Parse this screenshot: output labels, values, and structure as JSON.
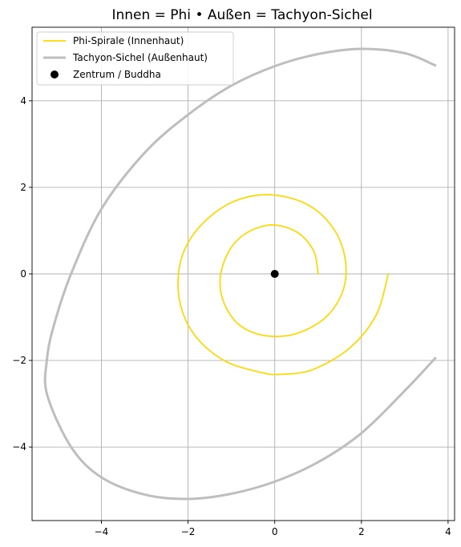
{
  "chart_data": {
    "type": "line",
    "title": "Innen = Phi • Außen = Tachyon-Sichel",
    "xlabel": "",
    "ylabel": "",
    "xlim": [
      -5.6,
      4.15
    ],
    "ylim": [
      -5.7,
      5.7
    ],
    "xticks": [
      -4,
      -2,
      0,
      2,
      4
    ],
    "yticks": [
      -4,
      -2,
      0,
      2,
      4
    ],
    "grid": true,
    "legend_position": "top-left",
    "series": [
      {
        "name": "Phi-Spirale (Innenhaut)",
        "kind": "line",
        "color": "#FFD700",
        "points": [
          [
            1.0,
            0.0
          ],
          [
            0.9,
            0.53
          ],
          [
            0.52,
            0.96
          ],
          [
            -0.07,
            1.13
          ],
          [
            -0.66,
            0.94
          ],
          [
            -1.06,
            0.52
          ],
          [
            -1.26,
            -0.1
          ],
          [
            -1.16,
            -0.7
          ],
          [
            -0.79,
            -1.2
          ],
          [
            -0.2,
            -1.43
          ],
          [
            0.5,
            -1.38
          ],
          [
            1.18,
            -1.0
          ],
          [
            1.58,
            -0.37
          ],
          [
            1.62,
            0.38
          ],
          [
            1.32,
            1.1
          ],
          [
            0.7,
            1.63
          ],
          [
            -0.18,
            1.83
          ],
          [
            -1.04,
            1.63
          ],
          [
            -1.77,
            1.05
          ],
          [
            -2.17,
            0.3
          ],
          [
            -2.2,
            -0.6
          ],
          [
            -1.86,
            -1.4
          ],
          [
            -1.17,
            -2.0
          ],
          [
            -0.31,
            -2.28
          ],
          [
            0.17,
            -2.32
          ],
          [
            0.88,
            -2.21
          ],
          [
            1.72,
            -1.72
          ],
          [
            2.34,
            -0.95
          ],
          [
            2.62,
            0.0
          ]
        ]
      },
      {
        "name": "Tachyon-Sichel (Außenhaut)",
        "kind": "line",
        "color": "#BEBEBE",
        "points": [
          [
            3.7,
            4.82
          ],
          [
            3.0,
            5.1
          ],
          [
            2.0,
            5.2
          ],
          [
            1.0,
            5.08
          ],
          [
            0.0,
            4.8
          ],
          [
            -1.0,
            4.35
          ],
          [
            -2.0,
            3.68
          ],
          [
            -3.0,
            2.8
          ],
          [
            -4.0,
            1.5
          ],
          [
            -4.7,
            0.0
          ],
          [
            -5.1,
            -1.2
          ],
          [
            -5.26,
            -2.0
          ],
          [
            -5.25,
            -2.8
          ],
          [
            -4.7,
            -4.0
          ],
          [
            -4.0,
            -4.7
          ],
          [
            -3.0,
            -5.1
          ],
          [
            -2.0,
            -5.2
          ],
          [
            -1.0,
            -5.08
          ],
          [
            0.0,
            -4.8
          ],
          [
            1.0,
            -4.35
          ],
          [
            2.0,
            -3.68
          ],
          [
            3.0,
            -2.7
          ],
          [
            3.7,
            -1.95
          ]
        ]
      },
      {
        "name": "Zentrum / Buddha",
        "kind": "scatter",
        "color": "#000000",
        "points": [
          [
            0,
            0
          ]
        ]
      }
    ]
  }
}
